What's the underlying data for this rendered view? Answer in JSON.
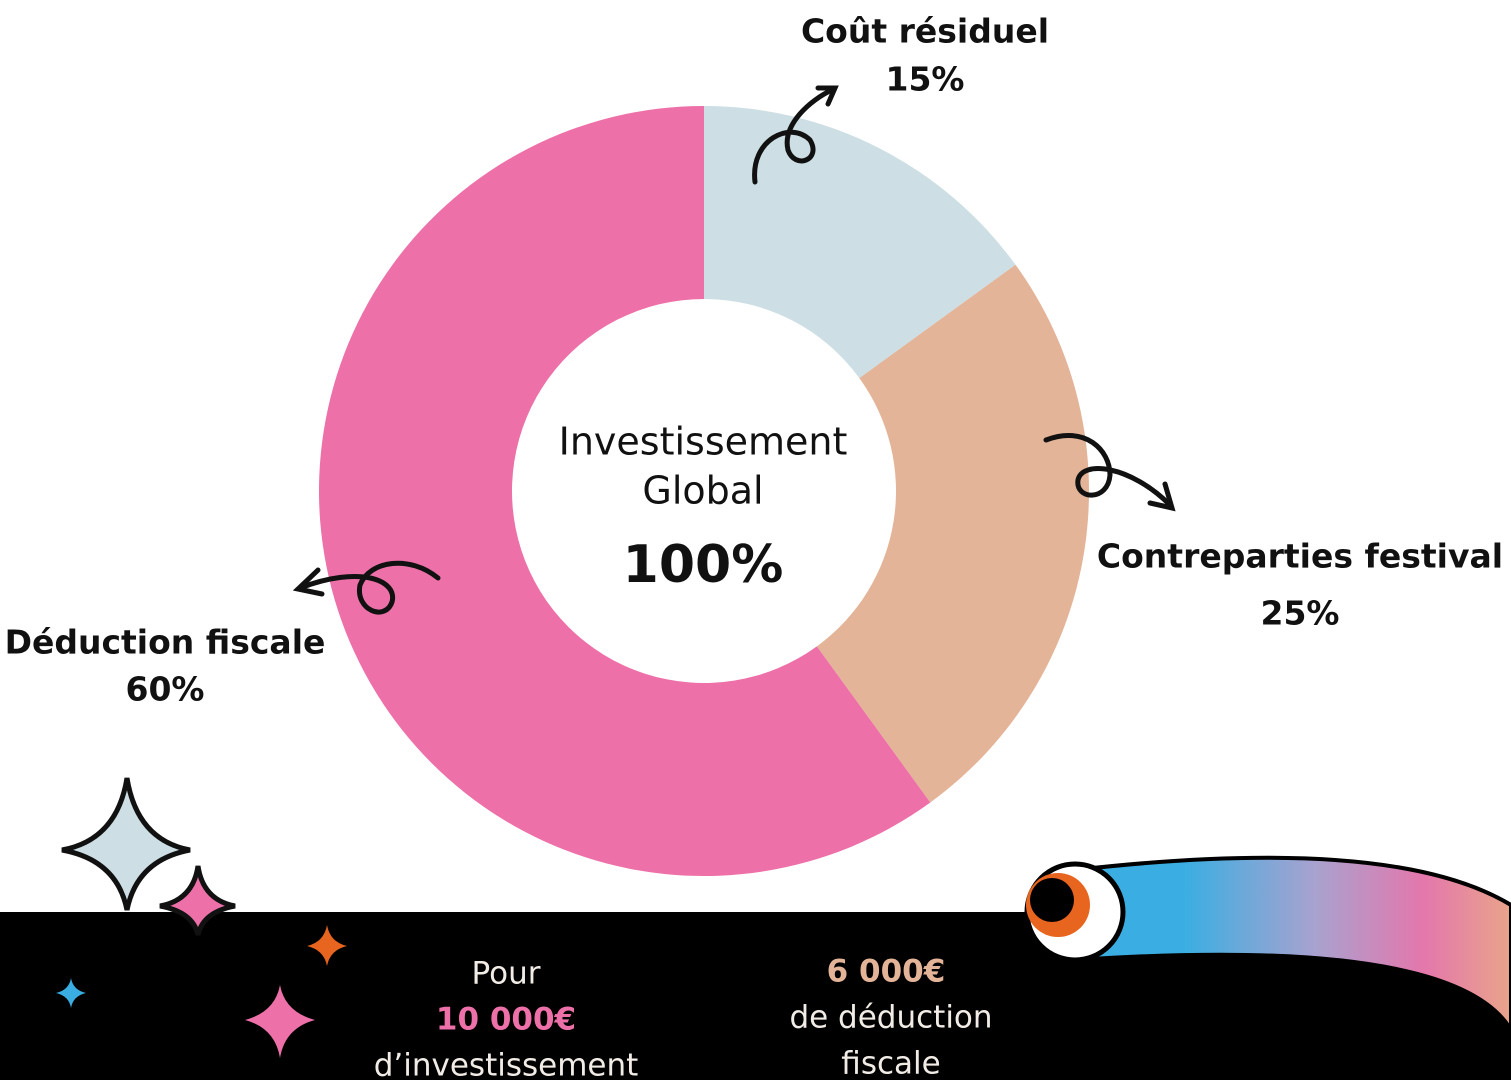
{
  "chart_data": {
    "type": "donut",
    "center_label": [
      "Investissement",
      "Global"
    ],
    "center_value": "100%",
    "categories": [
      "Coût résiduel",
      "Contreparties festival",
      "Déduction fiscale"
    ],
    "values": [
      15,
      25,
      60
    ],
    "value_labels": [
      "15%",
      "25%",
      "60%"
    ],
    "colors": [
      "#cddfe4",
      "#e4b498",
      "#ed70a8"
    ]
  },
  "footer": {
    "left": [
      "Pour",
      "10 000€",
      "d’investissement"
    ],
    "right": [
      "6 000€",
      "de déduction",
      "fiscale"
    ]
  }
}
